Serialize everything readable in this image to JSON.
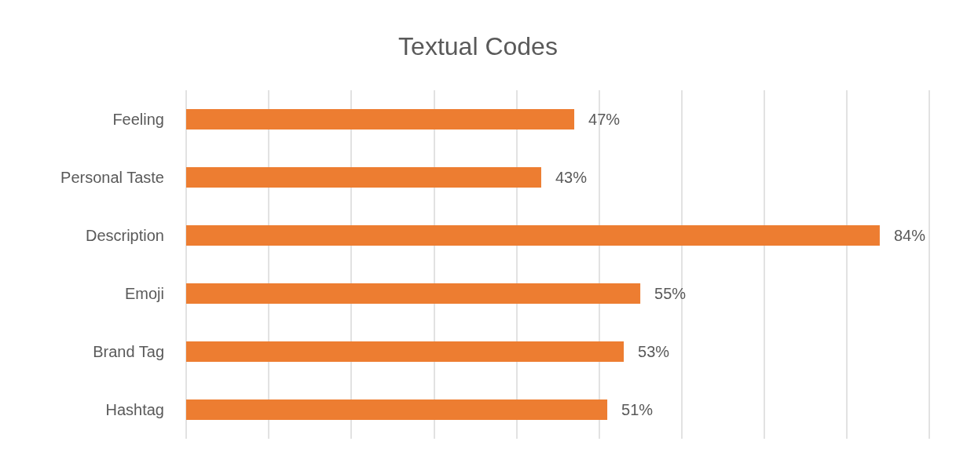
{
  "chart_data": {
    "type": "bar",
    "title": "Textual Codes",
    "orientation": "horizontal",
    "categories": [
      "Feeling",
      "Personal Taste",
      "Description",
      "Emoji",
      "Brand Tag",
      "Hashtag"
    ],
    "values": [
      47,
      43,
      84,
      55,
      53,
      51
    ],
    "value_labels": [
      "47%",
      "43%",
      "84%",
      "55%",
      "53%",
      "51%"
    ],
    "color": "#ed7d31",
    "xlim": [
      0,
      90
    ],
    "xticks": [
      {
        "value": 0,
        "label": null
      },
      {
        "value": 10,
        "label": null
      },
      {
        "value": 20,
        "label": null
      },
      {
        "value": 30,
        "label": null
      },
      {
        "value": 40,
        "label": null
      },
      {
        "value": 50,
        "label": null
      },
      {
        "value": 60,
        "label": null
      },
      {
        "value": 70,
        "label": null
      },
      {
        "value": 80,
        "label": null
      },
      {
        "value": 90,
        "label": null
      }
    ],
    "grid": "x",
    "tick_labels": "y"
  }
}
